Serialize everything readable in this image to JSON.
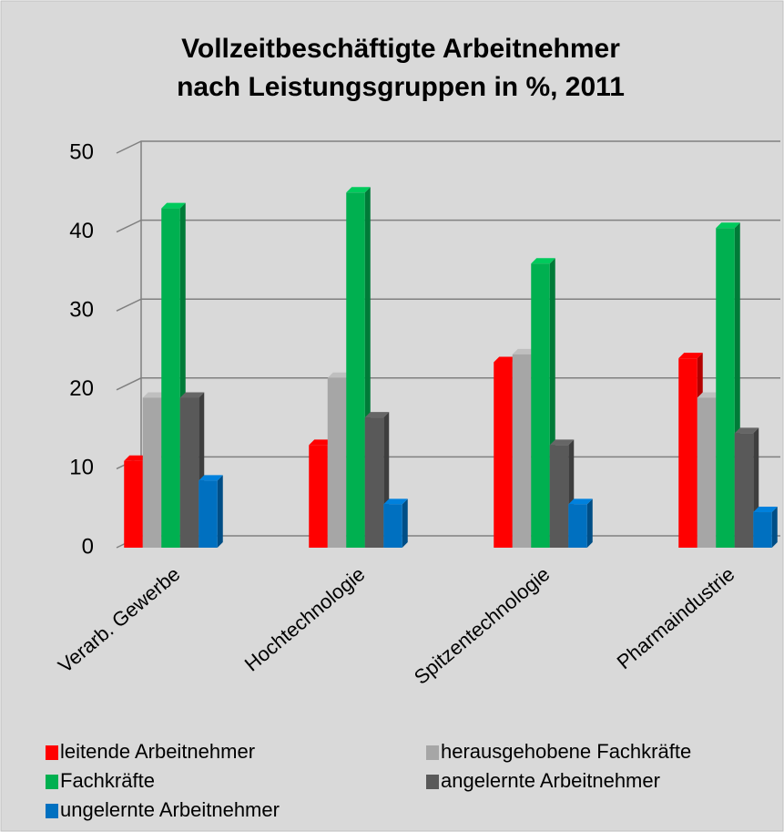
{
  "chart_data": {
    "type": "bar3d",
    "title": [
      "Vollzeitbeschäftigte  Arbeitnehmer",
      "nach Leistungsgruppen in %, 2011"
    ],
    "categories": [
      "Verarb. Gewerbe",
      "Hochtechnologie",
      "Spitzentechnologie",
      "Pharmaindustrie"
    ],
    "series": [
      {
        "name": "leitende Arbeitnehmer",
        "color": "#ff0000",
        "values": [
          11,
          13,
          23.5,
          24
        ]
      },
      {
        "name": "herausgehobene Fachkräfte",
        "color": "#a6a6a6",
        "values": [
          19,
          21.5,
          24.5,
          19
        ]
      },
      {
        "name": "Fachkräfte",
        "color": "#00b050",
        "values": [
          43,
          45,
          36,
          40.5
        ]
      },
      {
        "name": "angelernte Arbeitnehmer",
        "color": "#595959",
        "values": [
          19,
          16.5,
          13,
          14.5
        ]
      },
      {
        "name": "ungelernte Arbeitnehmer",
        "color": "#0070c0",
        "values": [
          8.5,
          5.5,
          5.5,
          4.5
        ]
      }
    ],
    "ylim": [
      0,
      50
    ],
    "yticks": [
      0,
      10,
      20,
      30,
      40,
      50
    ],
    "grid": true
  }
}
